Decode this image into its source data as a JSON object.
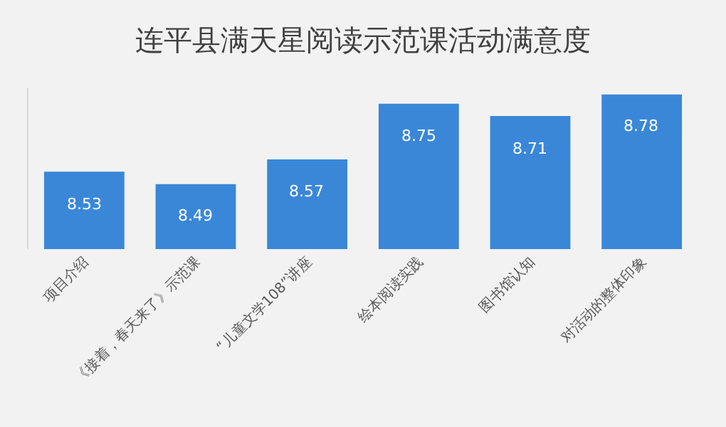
{
  "chart_data": {
    "type": "bar",
    "title": "连平县满天星阅读示范课活动满意度",
    "categories": [
      "项目介绍",
      "《接着，春天来了》示范课",
      "“儿童文学108”讲座",
      "绘本阅读实践",
      "图书馆认知",
      "对活动的整体印象"
    ],
    "values": [
      8.53,
      8.49,
      8.57,
      8.75,
      8.71,
      8.78
    ],
    "color": "#3a87d8",
    "ylim": [
      8.28,
      8.8
    ],
    "tick_labels": "x",
    "grid": false,
    "data_labels": true
  }
}
